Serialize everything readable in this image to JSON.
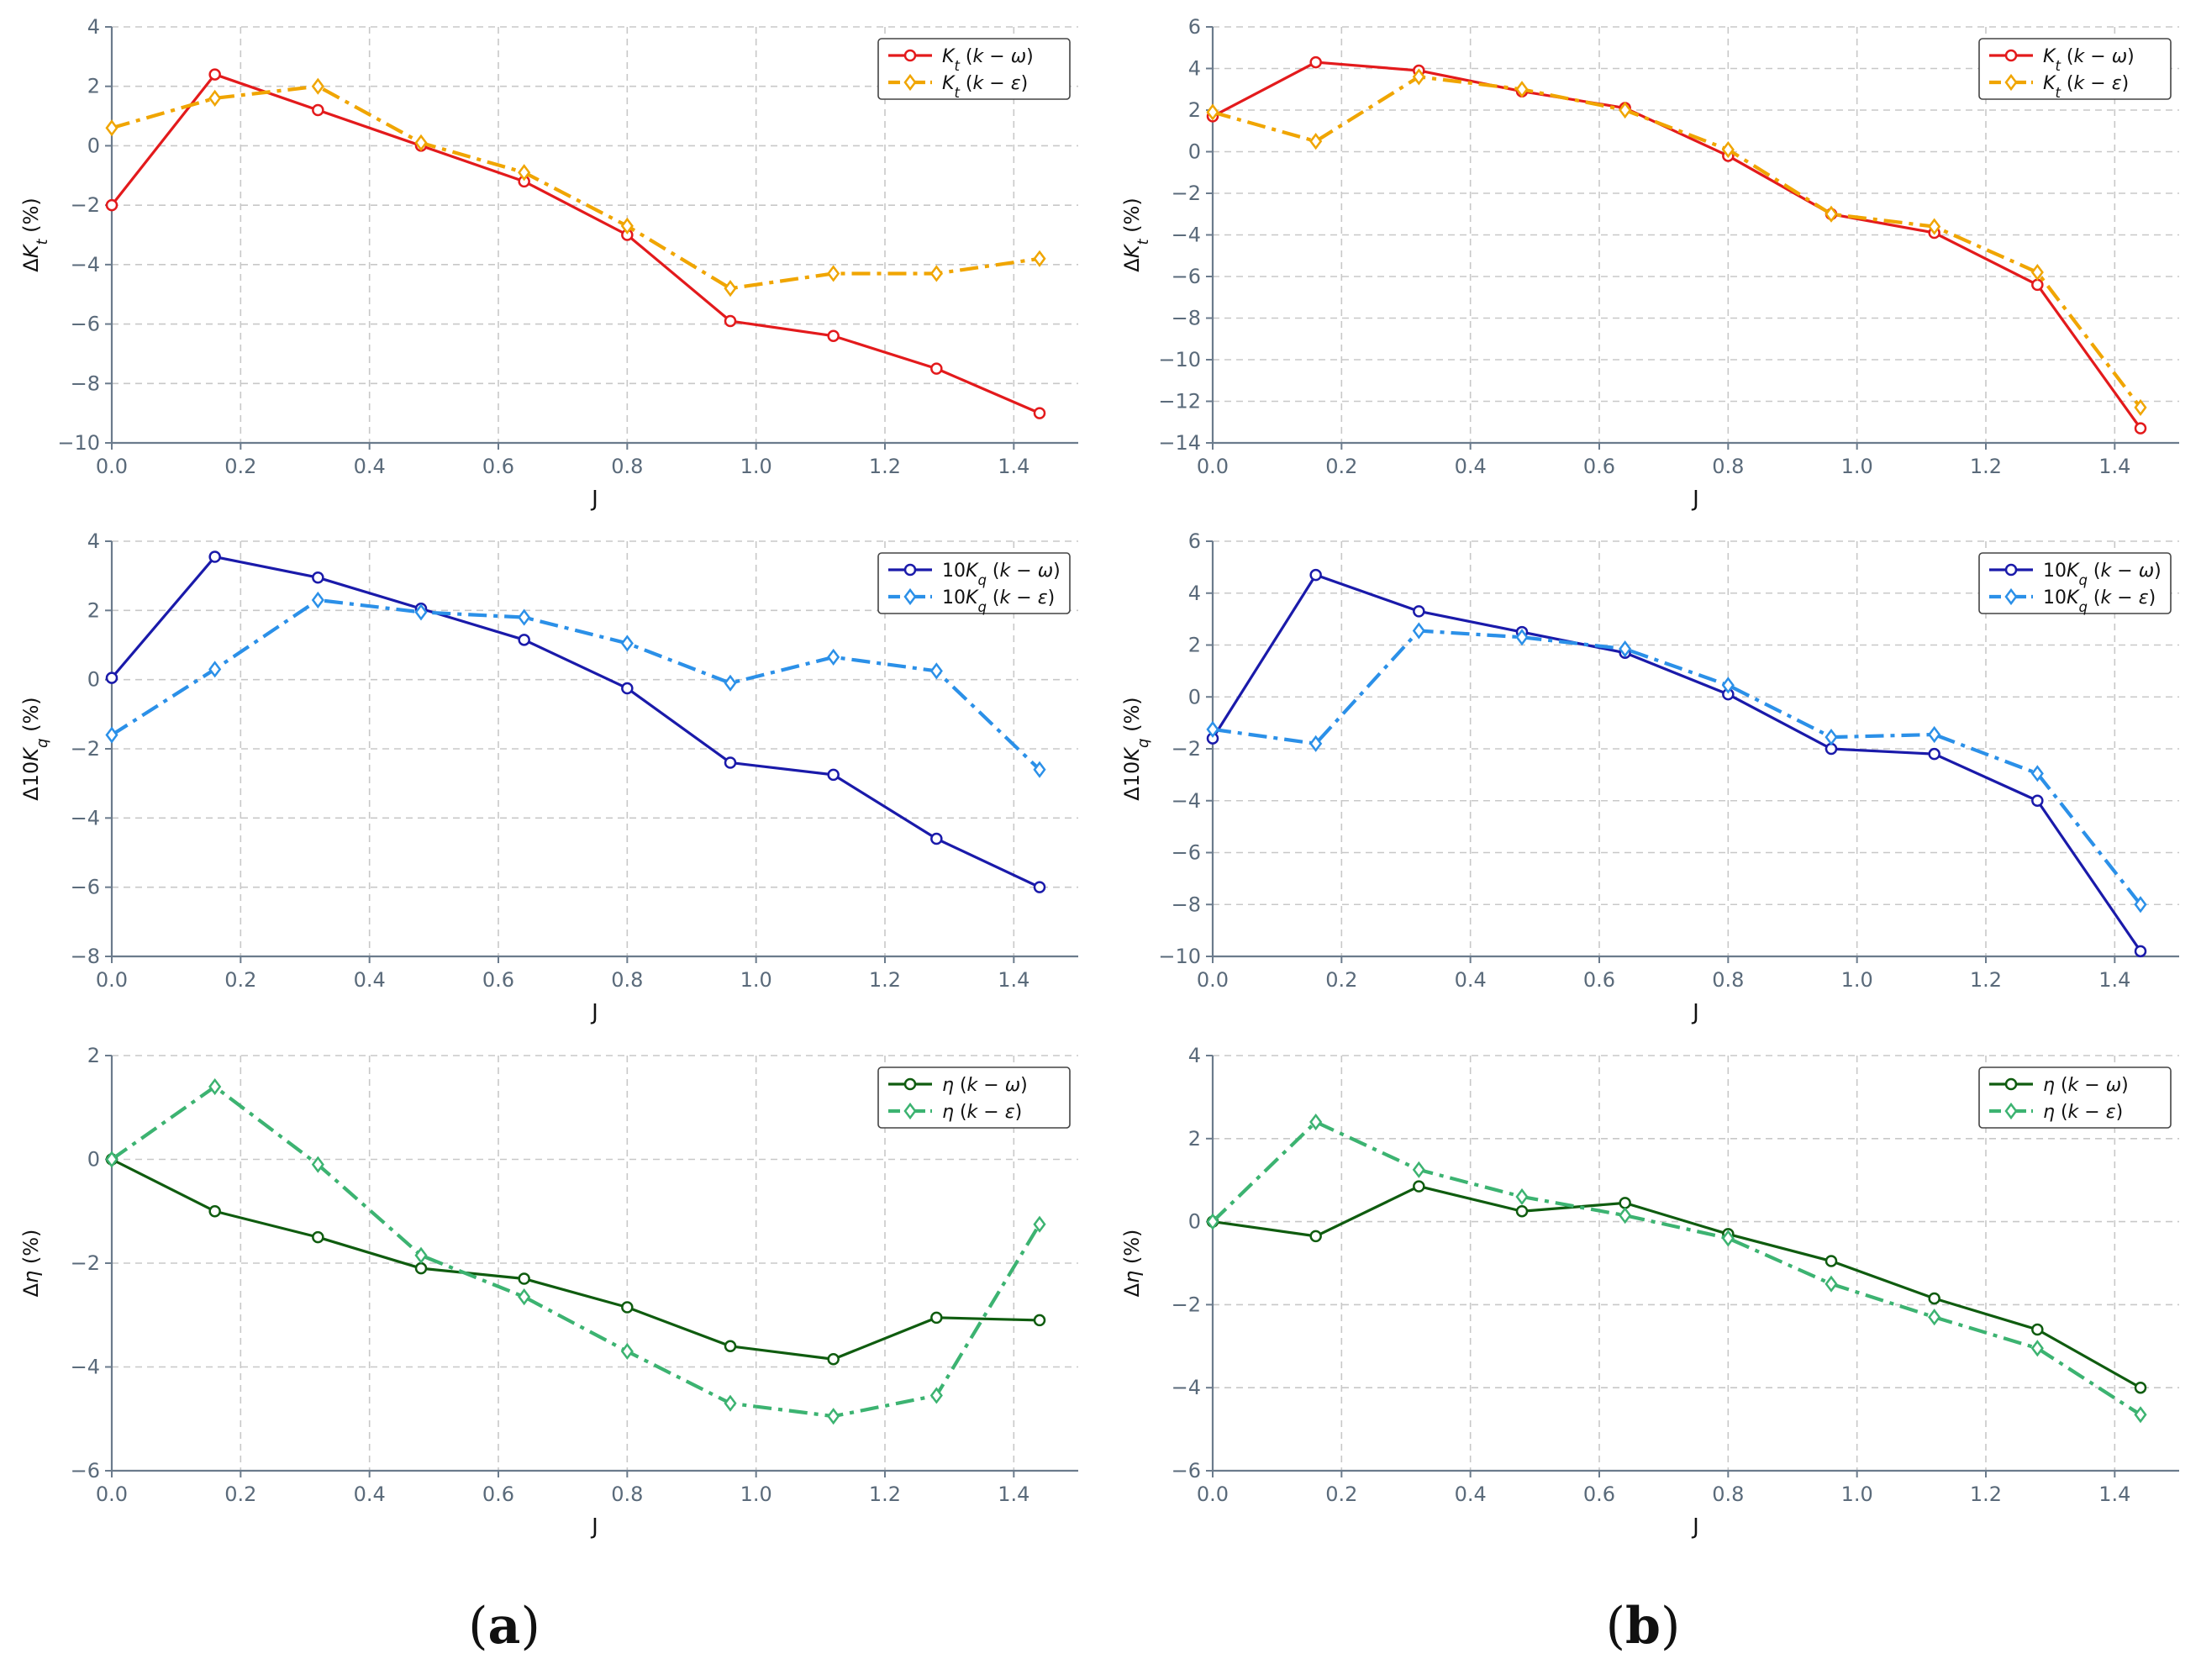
{
  "colors": {
    "kt_kw": "#e31a1c",
    "kt_ke": "#f0a500",
    "kq_kw": "#1a1aaa",
    "kq_ke": "#2b90e8",
    "eta_kw": "#0f5c0f",
    "eta_ke": "#3cb371",
    "axis": "#6b7b8c",
    "grid": "#c8c8c8",
    "tick_text": "#5a6a7a",
    "label_text": "#111111"
  },
  "captions": {
    "a": "a",
    "b": "b"
  },
  "chart_data": [
    {
      "type": "line",
      "panel": "a-top",
      "xlabel": "J",
      "ylabel": "ΔK_t (%)",
      "xlim": [
        0,
        1.5
      ],
      "ylim": [
        -10,
        4
      ],
      "xticks": [
        0.0,
        0.2,
        0.4,
        0.6,
        0.8,
        1.0,
        1.2,
        1.4
      ],
      "yticks": [
        -10,
        -8,
        -6,
        -4,
        -2,
        0,
        2,
        4
      ],
      "x": [
        0.0,
        0.16,
        0.32,
        0.48,
        0.64,
        0.8,
        0.96,
        1.12,
        1.28,
        1.44
      ],
      "series": [
        {
          "name": "K_t (k − ω)",
          "style": "solid",
          "marker": "circle",
          "color_key": "kt_kw",
          "values": [
            -2.0,
            2.4,
            1.2,
            0.0,
            -1.2,
            -3.0,
            -5.9,
            -6.4,
            -7.5,
            -9.0
          ]
        },
        {
          "name": "K_t (k − ε)",
          "style": "dashdot",
          "marker": "diamond",
          "color_key": "kt_ke",
          "values": [
            0.6,
            1.6,
            2.0,
            0.1,
            -0.9,
            -2.7,
            -4.8,
            -4.3,
            -4.3,
            -3.8
          ]
        }
      ]
    },
    {
      "type": "line",
      "panel": "b-top",
      "xlabel": "J",
      "ylabel": "ΔK_t (%)",
      "xlim": [
        0,
        1.5
      ],
      "ylim": [
        -14,
        6
      ],
      "xticks": [
        0.0,
        0.2,
        0.4,
        0.6,
        0.8,
        1.0,
        1.2,
        1.4
      ],
      "yticks": [
        -14,
        -12,
        -10,
        -8,
        -6,
        -4,
        -2,
        0,
        2,
        4,
        6
      ],
      "x": [
        0.0,
        0.16,
        0.32,
        0.48,
        0.64,
        0.8,
        0.96,
        1.12,
        1.28,
        1.44
      ],
      "series": [
        {
          "name": "K_t (k − ω)",
          "style": "solid",
          "marker": "circle",
          "color_key": "kt_kw",
          "values": [
            1.7,
            4.3,
            3.9,
            2.9,
            2.1,
            -0.2,
            -3.0,
            -3.9,
            -6.4,
            -13.3
          ]
        },
        {
          "name": "K_t (k − ε)",
          "style": "dashdot",
          "marker": "diamond",
          "color_key": "kt_ke",
          "values": [
            1.9,
            0.5,
            3.6,
            3.0,
            2.0,
            0.1,
            -3.0,
            -3.6,
            -5.8,
            -12.3
          ]
        }
      ]
    },
    {
      "type": "line",
      "panel": "a-mid",
      "xlabel": "J",
      "ylabel": "Δ10K_q (%)",
      "xlim": [
        0,
        1.5
      ],
      "ylim": [
        -8,
        4
      ],
      "xticks": [
        0.0,
        0.2,
        0.4,
        0.6,
        0.8,
        1.0,
        1.2,
        1.4
      ],
      "yticks": [
        -8,
        -6,
        -4,
        -2,
        0,
        2,
        4
      ],
      "x": [
        0.0,
        0.16,
        0.32,
        0.48,
        0.64,
        0.8,
        0.96,
        1.12,
        1.28,
        1.44
      ],
      "series": [
        {
          "name": "10K_q (k − ω)",
          "style": "solid",
          "marker": "circle",
          "color_key": "kq_kw",
          "values": [
            0.05,
            3.55,
            2.95,
            2.05,
            1.15,
            -0.25,
            -2.4,
            -2.75,
            -4.6,
            -6.0
          ]
        },
        {
          "name": "10K_q (k − ε)",
          "style": "dashdot",
          "marker": "diamond",
          "color_key": "kq_ke",
          "values": [
            -1.6,
            0.3,
            2.3,
            1.95,
            1.8,
            1.05,
            -0.1,
            0.65,
            0.25,
            -2.6
          ]
        }
      ]
    },
    {
      "type": "line",
      "panel": "b-mid",
      "xlabel": "J",
      "ylabel": "Δ10K_q (%)",
      "xlim": [
        0,
        1.5
      ],
      "ylim": [
        -10,
        6
      ],
      "xticks": [
        0.0,
        0.2,
        0.4,
        0.6,
        0.8,
        1.0,
        1.2,
        1.4
      ],
      "yticks": [
        -10,
        -8,
        -6,
        -4,
        -2,
        0,
        2,
        4,
        6
      ],
      "x": [
        0.0,
        0.16,
        0.32,
        0.48,
        0.64,
        0.8,
        0.96,
        1.12,
        1.28,
        1.44
      ],
      "series": [
        {
          "name": "10K_q (k − ω)",
          "style": "solid",
          "marker": "circle",
          "color_key": "kq_kw",
          "values": [
            -1.6,
            4.7,
            3.3,
            2.5,
            1.7,
            0.1,
            -2.0,
            -2.2,
            -4.0,
            -9.8
          ]
        },
        {
          "name": "10K_q (k − ε)",
          "style": "dashdot",
          "marker": "diamond",
          "color_key": "kq_ke",
          "values": [
            -1.25,
            -1.8,
            2.55,
            2.3,
            1.85,
            0.45,
            -1.55,
            -1.45,
            -2.95,
            -8.0
          ]
        }
      ]
    },
    {
      "type": "line",
      "panel": "a-bot",
      "xlabel": "J",
      "ylabel": "Δη (%)",
      "xlim": [
        0,
        1.5
      ],
      "ylim": [
        -6,
        2
      ],
      "xticks": [
        0.0,
        0.2,
        0.4,
        0.6,
        0.8,
        1.0,
        1.2,
        1.4
      ],
      "yticks": [
        -6,
        -4,
        -2,
        0,
        2
      ],
      "x": [
        0.0,
        0.16,
        0.32,
        0.48,
        0.64,
        0.8,
        0.96,
        1.12,
        1.28,
        1.44
      ],
      "series": [
        {
          "name": "η (k − ω)",
          "style": "solid",
          "marker": "circle",
          "color_key": "eta_kw",
          "values": [
            0.0,
            -1.0,
            -1.5,
            -2.1,
            -2.3,
            -2.85,
            -3.6,
            -3.85,
            -3.05,
            -3.1
          ]
        },
        {
          "name": "η (k − ε)",
          "style": "dashdot",
          "marker": "diamond",
          "color_key": "eta_ke",
          "values": [
            0.0,
            1.4,
            -0.1,
            -1.85,
            -2.65,
            -3.7,
            -4.7,
            -4.95,
            -4.55,
            -1.25
          ]
        }
      ]
    },
    {
      "type": "line",
      "panel": "b-bot",
      "xlabel": "J",
      "ylabel": "Δη (%)",
      "xlim": [
        0,
        1.5
      ],
      "ylim": [
        -6,
        4
      ],
      "xticks": [
        0.0,
        0.2,
        0.4,
        0.6,
        0.8,
        1.0,
        1.2,
        1.4
      ],
      "yticks": [
        -6,
        -4,
        -2,
        0,
        2,
        4
      ],
      "x": [
        0.0,
        0.16,
        0.32,
        0.48,
        0.64,
        0.8,
        0.96,
        1.12,
        1.28,
        1.44
      ],
      "series": [
        {
          "name": "η (k − ω)",
          "style": "solid",
          "marker": "circle",
          "color_key": "eta_kw",
          "values": [
            0.0,
            -0.35,
            0.85,
            0.25,
            0.45,
            -0.3,
            -0.95,
            -1.85,
            -2.6,
            -4.0
          ]
        },
        {
          "name": "η (k − ε)",
          "style": "dashdot",
          "marker": "diamond",
          "color_key": "eta_ke",
          "values": [
            0.0,
            2.4,
            1.25,
            0.6,
            0.15,
            -0.4,
            -1.5,
            -2.3,
            -3.05,
            -4.65
          ]
        }
      ]
    }
  ]
}
